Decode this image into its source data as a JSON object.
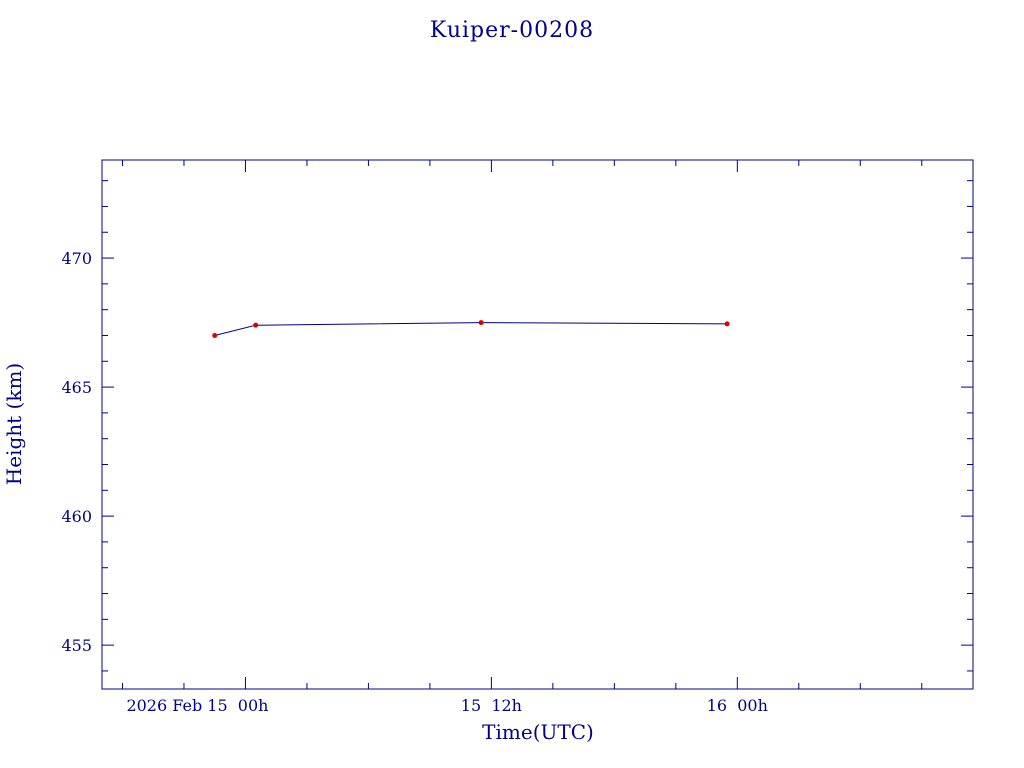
{
  "chart_data": {
    "type": "line",
    "title": "Kuiper-00208",
    "xlabel": "Time(UTC)",
    "ylabel": "Height (km)",
    "ylim": [
      453.3,
      473.8
    ],
    "xlim": [
      "2026-02-14T17:00:00Z",
      "2026-02-16T11:30:00Z"
    ],
    "x_ticks": [
      {
        "t": "2026-02-15T00:00:00Z",
        "label": "2026 Feb 15  00h"
      },
      {
        "t": "2026-02-15T12:00:00Z",
        "label": "15  12h"
      },
      {
        "t": "2026-02-16T00:00:00Z",
        "label": "16  00h"
      }
    ],
    "y_ticks": [
      455,
      460,
      465,
      470
    ],
    "series": [
      {
        "x": [
          "2026-02-14T22:30:00Z",
          "2026-02-15T00:30:00Z",
          "2026-02-15T11:30:00Z",
          "2026-02-15T23:30:00Z"
        ],
        "values": [
          467.0,
          467.4,
          467.5,
          467.45
        ]
      }
    ],
    "grid": false,
    "colors": {
      "axes": "#00008b",
      "line": "#00008b",
      "markers": "#dd0000"
    }
  }
}
